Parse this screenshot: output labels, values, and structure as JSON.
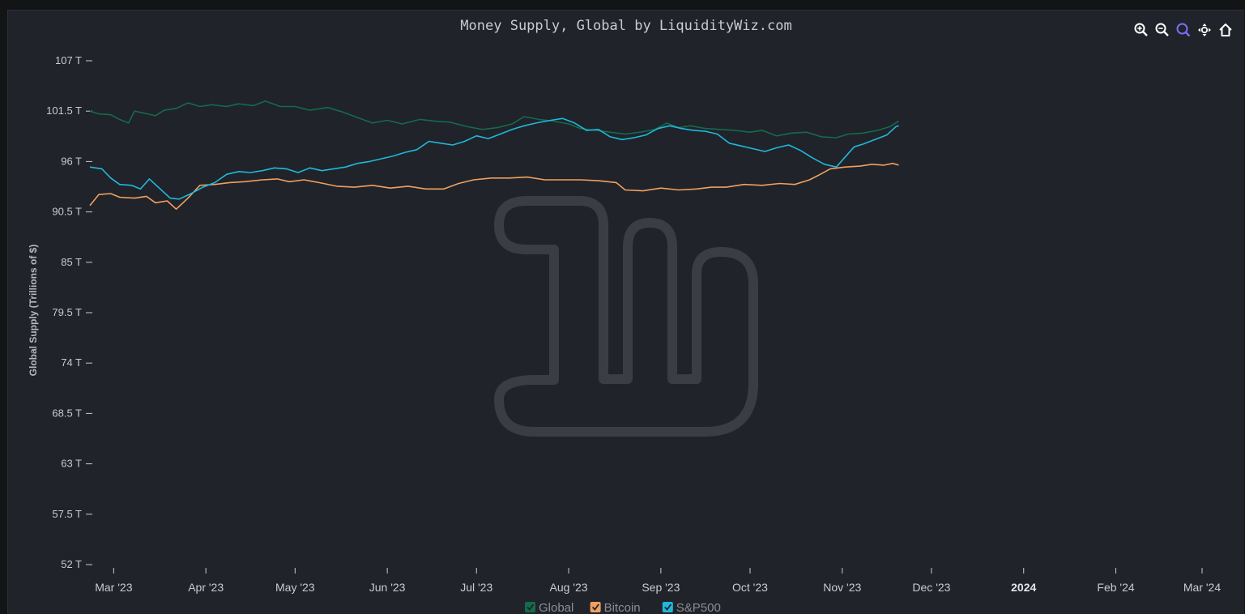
{
  "toolbar": {
    "items": [
      {
        "name": "zoom-in-icon",
        "active": false
      },
      {
        "name": "zoom-out-icon",
        "active": false
      },
      {
        "name": "selection-zoom-icon",
        "active": true
      },
      {
        "name": "pan-icon",
        "active": false
      },
      {
        "name": "reset-zoom-home-icon",
        "active": false
      }
    ],
    "active_color": "#7a6cff",
    "icon_color": "#ffffff"
  },
  "chart_data": {
    "type": "line",
    "title": "Money Supply, Global by LiquidityWiz.com",
    "ylabel": "Global Supply (Trillions of $)",
    "xlabel": "",
    "ylim": [
      52,
      107
    ],
    "xlim": [
      "2023-02-21",
      "2024-03-01"
    ],
    "yticks": [
      {
        "v": 52,
        "label": "52 T"
      },
      {
        "v": 57.5,
        "label": "57.5 T"
      },
      {
        "v": 63,
        "label": "63 T"
      },
      {
        "v": 68.5,
        "label": "68.5 T"
      },
      {
        "v": 74,
        "label": "74 T"
      },
      {
        "v": 79.5,
        "label": "79.5 T"
      },
      {
        "v": 85,
        "label": "85 T"
      },
      {
        "v": 90.5,
        "label": "90.5 T"
      },
      {
        "v": 96,
        "label": "96 T"
      },
      {
        "v": 101.5,
        "label": "101.5 T"
      },
      {
        "v": 107,
        "label": "107 T"
      }
    ],
    "xticks": [
      {
        "date": "2023-03-01",
        "label": "Mar '23",
        "bold": false
      },
      {
        "date": "2023-04-01",
        "label": "Apr '23",
        "bold": false
      },
      {
        "date": "2023-05-01",
        "label": "May '23",
        "bold": false
      },
      {
        "date": "2023-06-01",
        "label": "Jun '23",
        "bold": false
      },
      {
        "date": "2023-07-01",
        "label": "Jul '23",
        "bold": false
      },
      {
        "date": "2023-08-01",
        "label": "Aug '23",
        "bold": false
      },
      {
        "date": "2023-09-01",
        "label": "Sep '23",
        "bold": false
      },
      {
        "date": "2023-10-01",
        "label": "Oct '23",
        "bold": false
      },
      {
        "date": "2023-11-01",
        "label": "Nov '23",
        "bold": false
      },
      {
        "date": "2023-12-01",
        "label": "Dec '23",
        "bold": false
      },
      {
        "date": "2024-01-01",
        "label": "2024",
        "bold": true
      },
      {
        "date": "2024-02-01",
        "label": "Feb '24",
        "bold": false
      },
      {
        "date": "2024-03-01",
        "label": "Mar '24",
        "bold": false
      }
    ],
    "legend": "bottom-center",
    "series": [
      {
        "name": "Global",
        "color": "#146b4c",
        "points": [
          [
            "2023-02-21",
            101.5
          ],
          [
            "2023-02-24",
            101.2
          ],
          [
            "2023-02-28",
            101.1
          ],
          [
            "2023-03-03",
            100.6
          ],
          [
            "2023-03-06",
            100.2
          ],
          [
            "2023-03-08",
            101.5
          ],
          [
            "2023-03-11",
            101.3
          ],
          [
            "2023-03-15",
            101.0
          ],
          [
            "2023-03-18",
            101.6
          ],
          [
            "2023-03-22",
            101.8
          ],
          [
            "2023-03-26",
            102.4
          ],
          [
            "2023-03-30",
            102.0
          ],
          [
            "2023-04-03",
            102.2
          ],
          [
            "2023-04-08",
            102.0
          ],
          [
            "2023-04-12",
            102.3
          ],
          [
            "2023-04-17",
            102.1
          ],
          [
            "2023-04-21",
            102.6
          ],
          [
            "2023-04-26",
            102.0
          ],
          [
            "2023-05-01",
            102.0
          ],
          [
            "2023-05-06",
            101.6
          ],
          [
            "2023-05-12",
            101.9
          ],
          [
            "2023-05-17",
            101.4
          ],
          [
            "2023-05-22",
            100.8
          ],
          [
            "2023-05-27",
            100.2
          ],
          [
            "2023-06-01",
            100.5
          ],
          [
            "2023-06-06",
            100.1
          ],
          [
            "2023-06-12",
            100.6
          ],
          [
            "2023-06-17",
            100.4
          ],
          [
            "2023-06-22",
            100.3
          ],
          [
            "2023-06-28",
            99.8
          ],
          [
            "2023-07-03",
            99.5
          ],
          [
            "2023-07-08",
            99.7
          ],
          [
            "2023-07-13",
            100.1
          ],
          [
            "2023-07-17",
            100.9
          ],
          [
            "2023-07-22",
            100.6
          ],
          [
            "2023-07-27",
            100.4
          ],
          [
            "2023-08-01",
            100.1
          ],
          [
            "2023-08-05",
            99.6
          ],
          [
            "2023-08-10",
            99.4
          ],
          [
            "2023-08-15",
            99.2
          ],
          [
            "2023-08-20",
            99.0
          ],
          [
            "2023-08-25",
            99.2
          ],
          [
            "2023-08-30",
            99.5
          ],
          [
            "2023-09-03",
            100.2
          ],
          [
            "2023-09-07",
            99.7
          ],
          [
            "2023-09-11",
            99.9
          ],
          [
            "2023-09-16",
            99.6
          ],
          [
            "2023-09-21",
            99.5
          ],
          [
            "2023-09-26",
            99.4
          ],
          [
            "2023-10-01",
            99.2
          ],
          [
            "2023-10-05",
            99.4
          ],
          [
            "2023-10-10",
            98.8
          ],
          [
            "2023-10-15",
            99.1
          ],
          [
            "2023-10-20",
            99.2
          ],
          [
            "2023-10-25",
            98.7
          ],
          [
            "2023-10-30",
            98.6
          ],
          [
            "2023-11-03",
            99.0
          ],
          [
            "2023-11-08",
            99.1
          ],
          [
            "2023-11-13",
            99.4
          ],
          [
            "2023-11-17",
            99.8
          ],
          [
            "2023-11-20",
            100.4
          ]
        ]
      },
      {
        "name": "Bitcoin",
        "color": "#f0a060",
        "points": [
          [
            "2023-02-21",
            91.2
          ],
          [
            "2023-02-24",
            92.4
          ],
          [
            "2023-02-28",
            92.5
          ],
          [
            "2023-03-03",
            92.1
          ],
          [
            "2023-03-08",
            92.0
          ],
          [
            "2023-03-12",
            92.2
          ],
          [
            "2023-03-15",
            91.5
          ],
          [
            "2023-03-19",
            91.7
          ],
          [
            "2023-03-22",
            90.8
          ],
          [
            "2023-03-26",
            92.0
          ],
          [
            "2023-03-30",
            93.4
          ],
          [
            "2023-04-04",
            93.5
          ],
          [
            "2023-04-09",
            93.7
          ],
          [
            "2023-04-14",
            93.8
          ],
          [
            "2023-04-20",
            94.0
          ],
          [
            "2023-04-25",
            94.1
          ],
          [
            "2023-04-29",
            93.8
          ],
          [
            "2023-05-04",
            94.0
          ],
          [
            "2023-05-09",
            93.7
          ],
          [
            "2023-05-15",
            93.3
          ],
          [
            "2023-05-21",
            93.2
          ],
          [
            "2023-05-27",
            93.4
          ],
          [
            "2023-06-02",
            93.1
          ],
          [
            "2023-06-08",
            93.3
          ],
          [
            "2023-06-14",
            93.0
          ],
          [
            "2023-06-20",
            93.0
          ],
          [
            "2023-06-25",
            93.6
          ],
          [
            "2023-06-30",
            94.0
          ],
          [
            "2023-07-06",
            94.2
          ],
          [
            "2023-07-12",
            94.2
          ],
          [
            "2023-07-18",
            94.3
          ],
          [
            "2023-07-24",
            94.0
          ],
          [
            "2023-07-30",
            94.0
          ],
          [
            "2023-08-05",
            94.0
          ],
          [
            "2023-08-11",
            93.9
          ],
          [
            "2023-08-17",
            93.7
          ],
          [
            "2023-08-20",
            92.9
          ],
          [
            "2023-08-26",
            92.8
          ],
          [
            "2023-09-01",
            93.1
          ],
          [
            "2023-09-07",
            92.9
          ],
          [
            "2023-09-13",
            93.0
          ],
          [
            "2023-09-18",
            93.2
          ],
          [
            "2023-09-23",
            93.2
          ],
          [
            "2023-09-29",
            93.5
          ],
          [
            "2023-10-05",
            93.4
          ],
          [
            "2023-10-11",
            93.6
          ],
          [
            "2023-10-16",
            93.5
          ],
          [
            "2023-10-21",
            94.0
          ],
          [
            "2023-10-24",
            94.5
          ],
          [
            "2023-10-28",
            95.2
          ],
          [
            "2023-11-02",
            95.4
          ],
          [
            "2023-11-07",
            95.5
          ],
          [
            "2023-11-11",
            95.7
          ],
          [
            "2023-11-15",
            95.6
          ],
          [
            "2023-11-18",
            95.8
          ],
          [
            "2023-11-20",
            95.6
          ]
        ]
      },
      {
        "name": "S&P500",
        "color": "#1fb8dc",
        "points": [
          [
            "2023-02-21",
            95.4
          ],
          [
            "2023-02-25",
            95.2
          ],
          [
            "2023-02-28",
            94.2
          ],
          [
            "2023-03-03",
            93.5
          ],
          [
            "2023-03-07",
            93.4
          ],
          [
            "2023-03-10",
            93.0
          ],
          [
            "2023-03-13",
            94.1
          ],
          [
            "2023-03-16",
            93.2
          ],
          [
            "2023-03-20",
            92.0
          ],
          [
            "2023-03-23",
            91.9
          ],
          [
            "2023-03-27",
            92.5
          ],
          [
            "2023-03-31",
            93.2
          ],
          [
            "2023-04-04",
            93.7
          ],
          [
            "2023-04-08",
            94.6
          ],
          [
            "2023-04-12",
            94.9
          ],
          [
            "2023-04-16",
            94.8
          ],
          [
            "2023-04-20",
            95.0
          ],
          [
            "2023-04-24",
            95.3
          ],
          [
            "2023-04-28",
            95.2
          ],
          [
            "2023-05-02",
            94.8
          ],
          [
            "2023-05-06",
            95.3
          ],
          [
            "2023-05-10",
            95.0
          ],
          [
            "2023-05-14",
            95.2
          ],
          [
            "2023-05-18",
            95.4
          ],
          [
            "2023-05-22",
            95.8
          ],
          [
            "2023-05-26",
            96.0
          ],
          [
            "2023-05-30",
            96.3
          ],
          [
            "2023-06-03",
            96.6
          ],
          [
            "2023-06-07",
            97.0
          ],
          [
            "2023-06-11",
            97.3
          ],
          [
            "2023-06-15",
            98.2
          ],
          [
            "2023-06-19",
            98.0
          ],
          [
            "2023-06-23",
            97.8
          ],
          [
            "2023-06-27",
            98.2
          ],
          [
            "2023-07-01",
            98.8
          ],
          [
            "2023-07-05",
            98.5
          ],
          [
            "2023-07-09",
            99.0
          ],
          [
            "2023-07-13",
            99.5
          ],
          [
            "2023-07-17",
            99.9
          ],
          [
            "2023-07-21",
            100.2
          ],
          [
            "2023-07-26",
            100.5
          ],
          [
            "2023-07-30",
            100.7
          ],
          [
            "2023-08-03",
            100.2
          ],
          [
            "2023-08-07",
            99.4
          ],
          [
            "2023-08-11",
            99.5
          ],
          [
            "2023-08-15",
            98.7
          ],
          [
            "2023-08-19",
            98.4
          ],
          [
            "2023-08-23",
            98.6
          ],
          [
            "2023-08-27",
            98.9
          ],
          [
            "2023-08-31",
            99.6
          ],
          [
            "2023-09-04",
            99.9
          ],
          [
            "2023-09-08",
            99.6
          ],
          [
            "2023-09-12",
            99.4
          ],
          [
            "2023-09-16",
            99.3
          ],
          [
            "2023-09-20",
            99.0
          ],
          [
            "2023-09-24",
            98.0
          ],
          [
            "2023-09-28",
            97.7
          ],
          [
            "2023-10-02",
            97.4
          ],
          [
            "2023-10-06",
            97.1
          ],
          [
            "2023-10-10",
            97.5
          ],
          [
            "2023-10-14",
            97.8
          ],
          [
            "2023-10-18",
            97.2
          ],
          [
            "2023-10-22",
            96.4
          ],
          [
            "2023-10-26",
            95.7
          ],
          [
            "2023-10-30",
            95.4
          ],
          [
            "2023-11-02",
            96.5
          ],
          [
            "2023-11-05",
            97.6
          ],
          [
            "2023-11-08",
            97.9
          ],
          [
            "2023-11-12",
            98.4
          ],
          [
            "2023-11-16",
            98.9
          ],
          [
            "2023-11-19",
            99.8
          ],
          [
            "2023-11-20",
            99.9
          ]
        ]
      }
    ]
  }
}
